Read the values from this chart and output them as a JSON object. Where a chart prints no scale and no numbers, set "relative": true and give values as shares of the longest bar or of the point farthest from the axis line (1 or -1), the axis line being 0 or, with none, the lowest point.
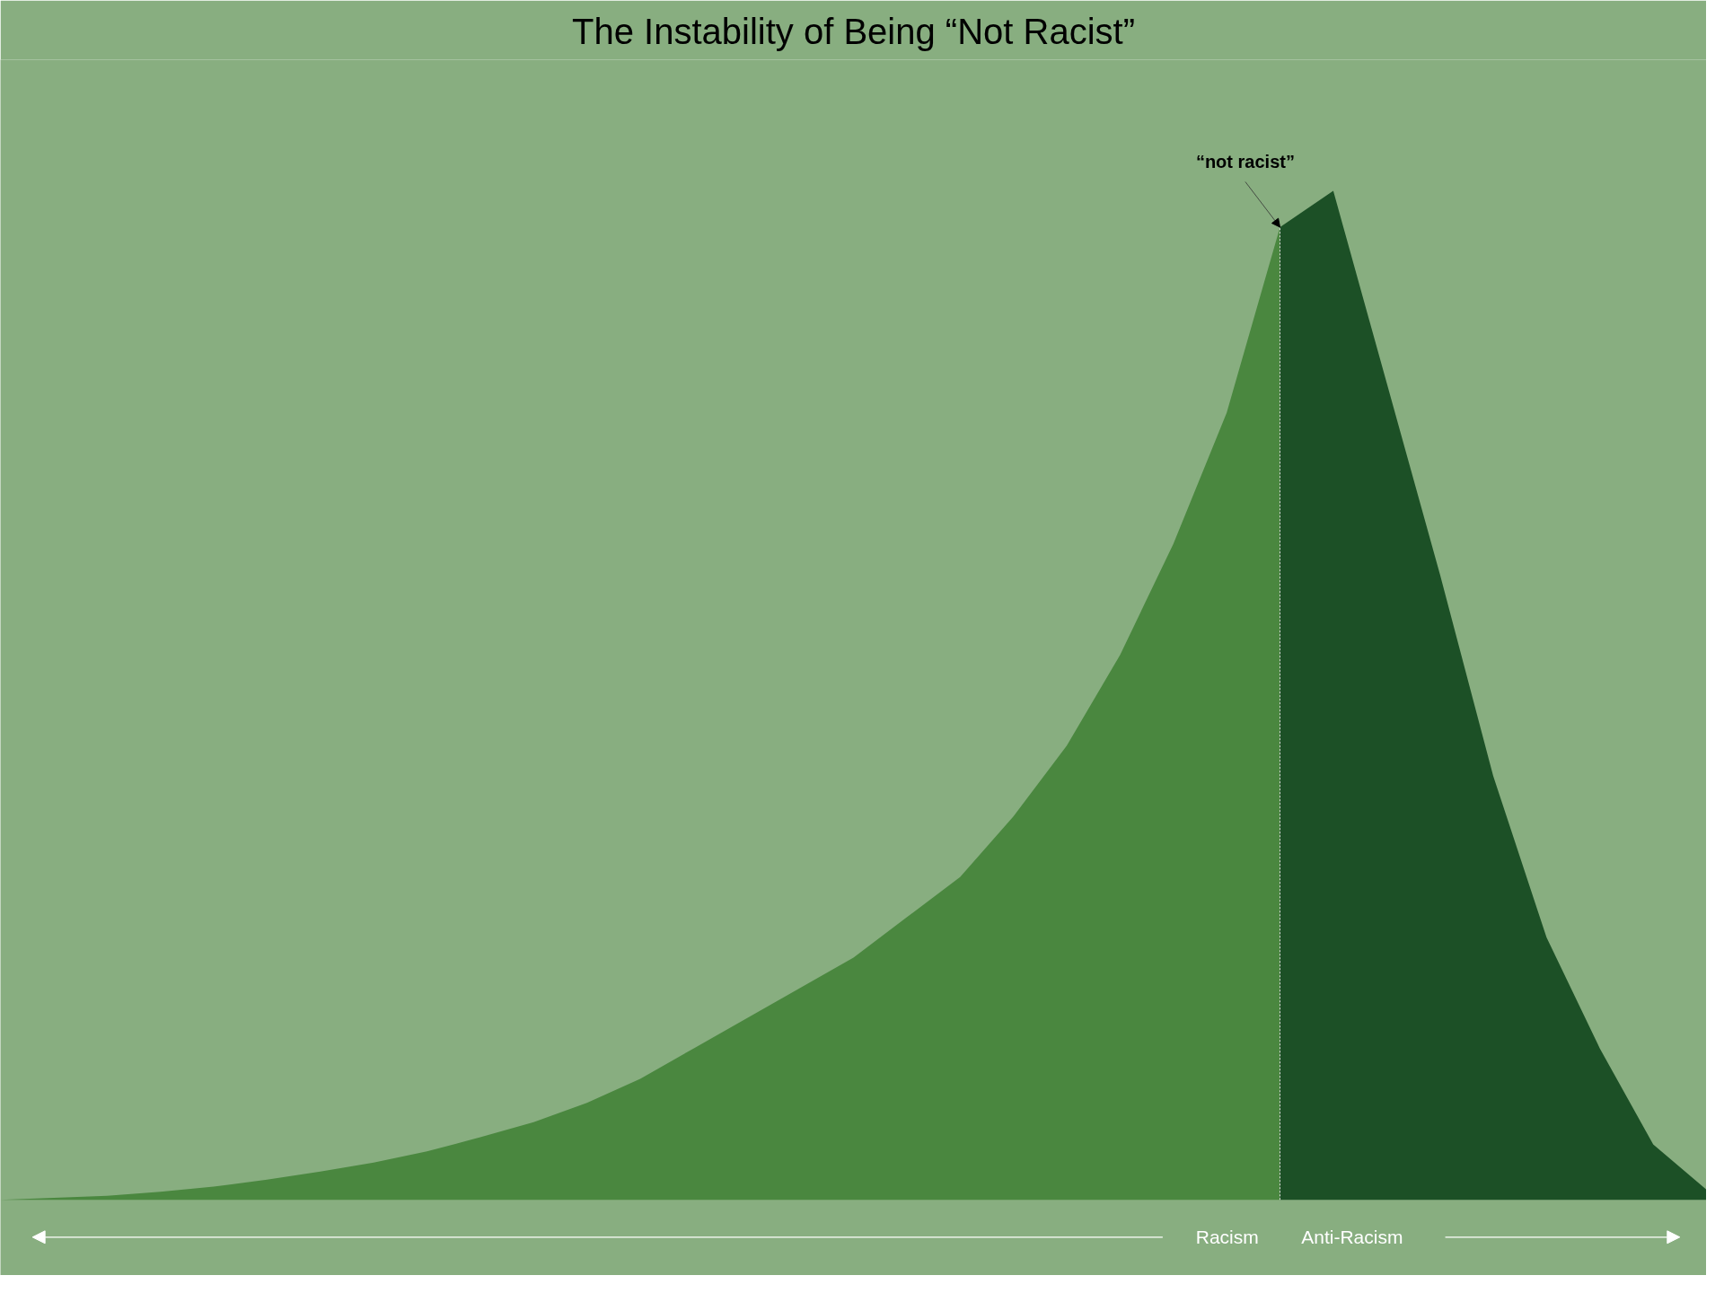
{
  "chart_data": {
    "type": "area",
    "title": "The Instability of Being “Not Racist”",
    "relative": true,
    "legend": false,
    "categories": [
      null,
      null,
      null,
      null,
      null,
      null,
      null,
      null,
      null,
      null,
      null,
      null,
      null,
      null,
      null,
      null,
      null,
      null,
      null,
      null,
      null,
      null,
      null,
      null,
      null,
      null,
      null,
      null,
      null,
      null,
      null,
      null,
      null
    ],
    "series": [
      {
        "name": "Racism",
        "color": "#4a873f",
        "values": [
          0,
          0.002,
          0.004,
          0.008,
          0.013,
          0.02,
          0.028,
          0.037,
          0.048,
          0.062,
          0.077,
          0.096,
          0.12,
          0.15,
          0.18,
          0.21,
          0.24,
          0.28,
          0.32,
          0.38,
          0.45,
          0.54,
          0.65,
          0.78,
          0.964,
          null,
          null,
          null,
          null,
          null,
          null,
          null,
          null
        ]
      },
      {
        "name": "Anti-Racism",
        "color": "#1c5026",
        "values": [
          null,
          null,
          null,
          null,
          null,
          null,
          null,
          null,
          null,
          null,
          null,
          null,
          null,
          null,
          null,
          null,
          null,
          null,
          null,
          null,
          null,
          null,
          null,
          null,
          0.964,
          1.0,
          0.81,
          0.62,
          0.42,
          0.26,
          0.15,
          0.055,
          0.01
        ]
      }
    ],
    "annotations": [
      "“not racist”"
    ]
  }
}
